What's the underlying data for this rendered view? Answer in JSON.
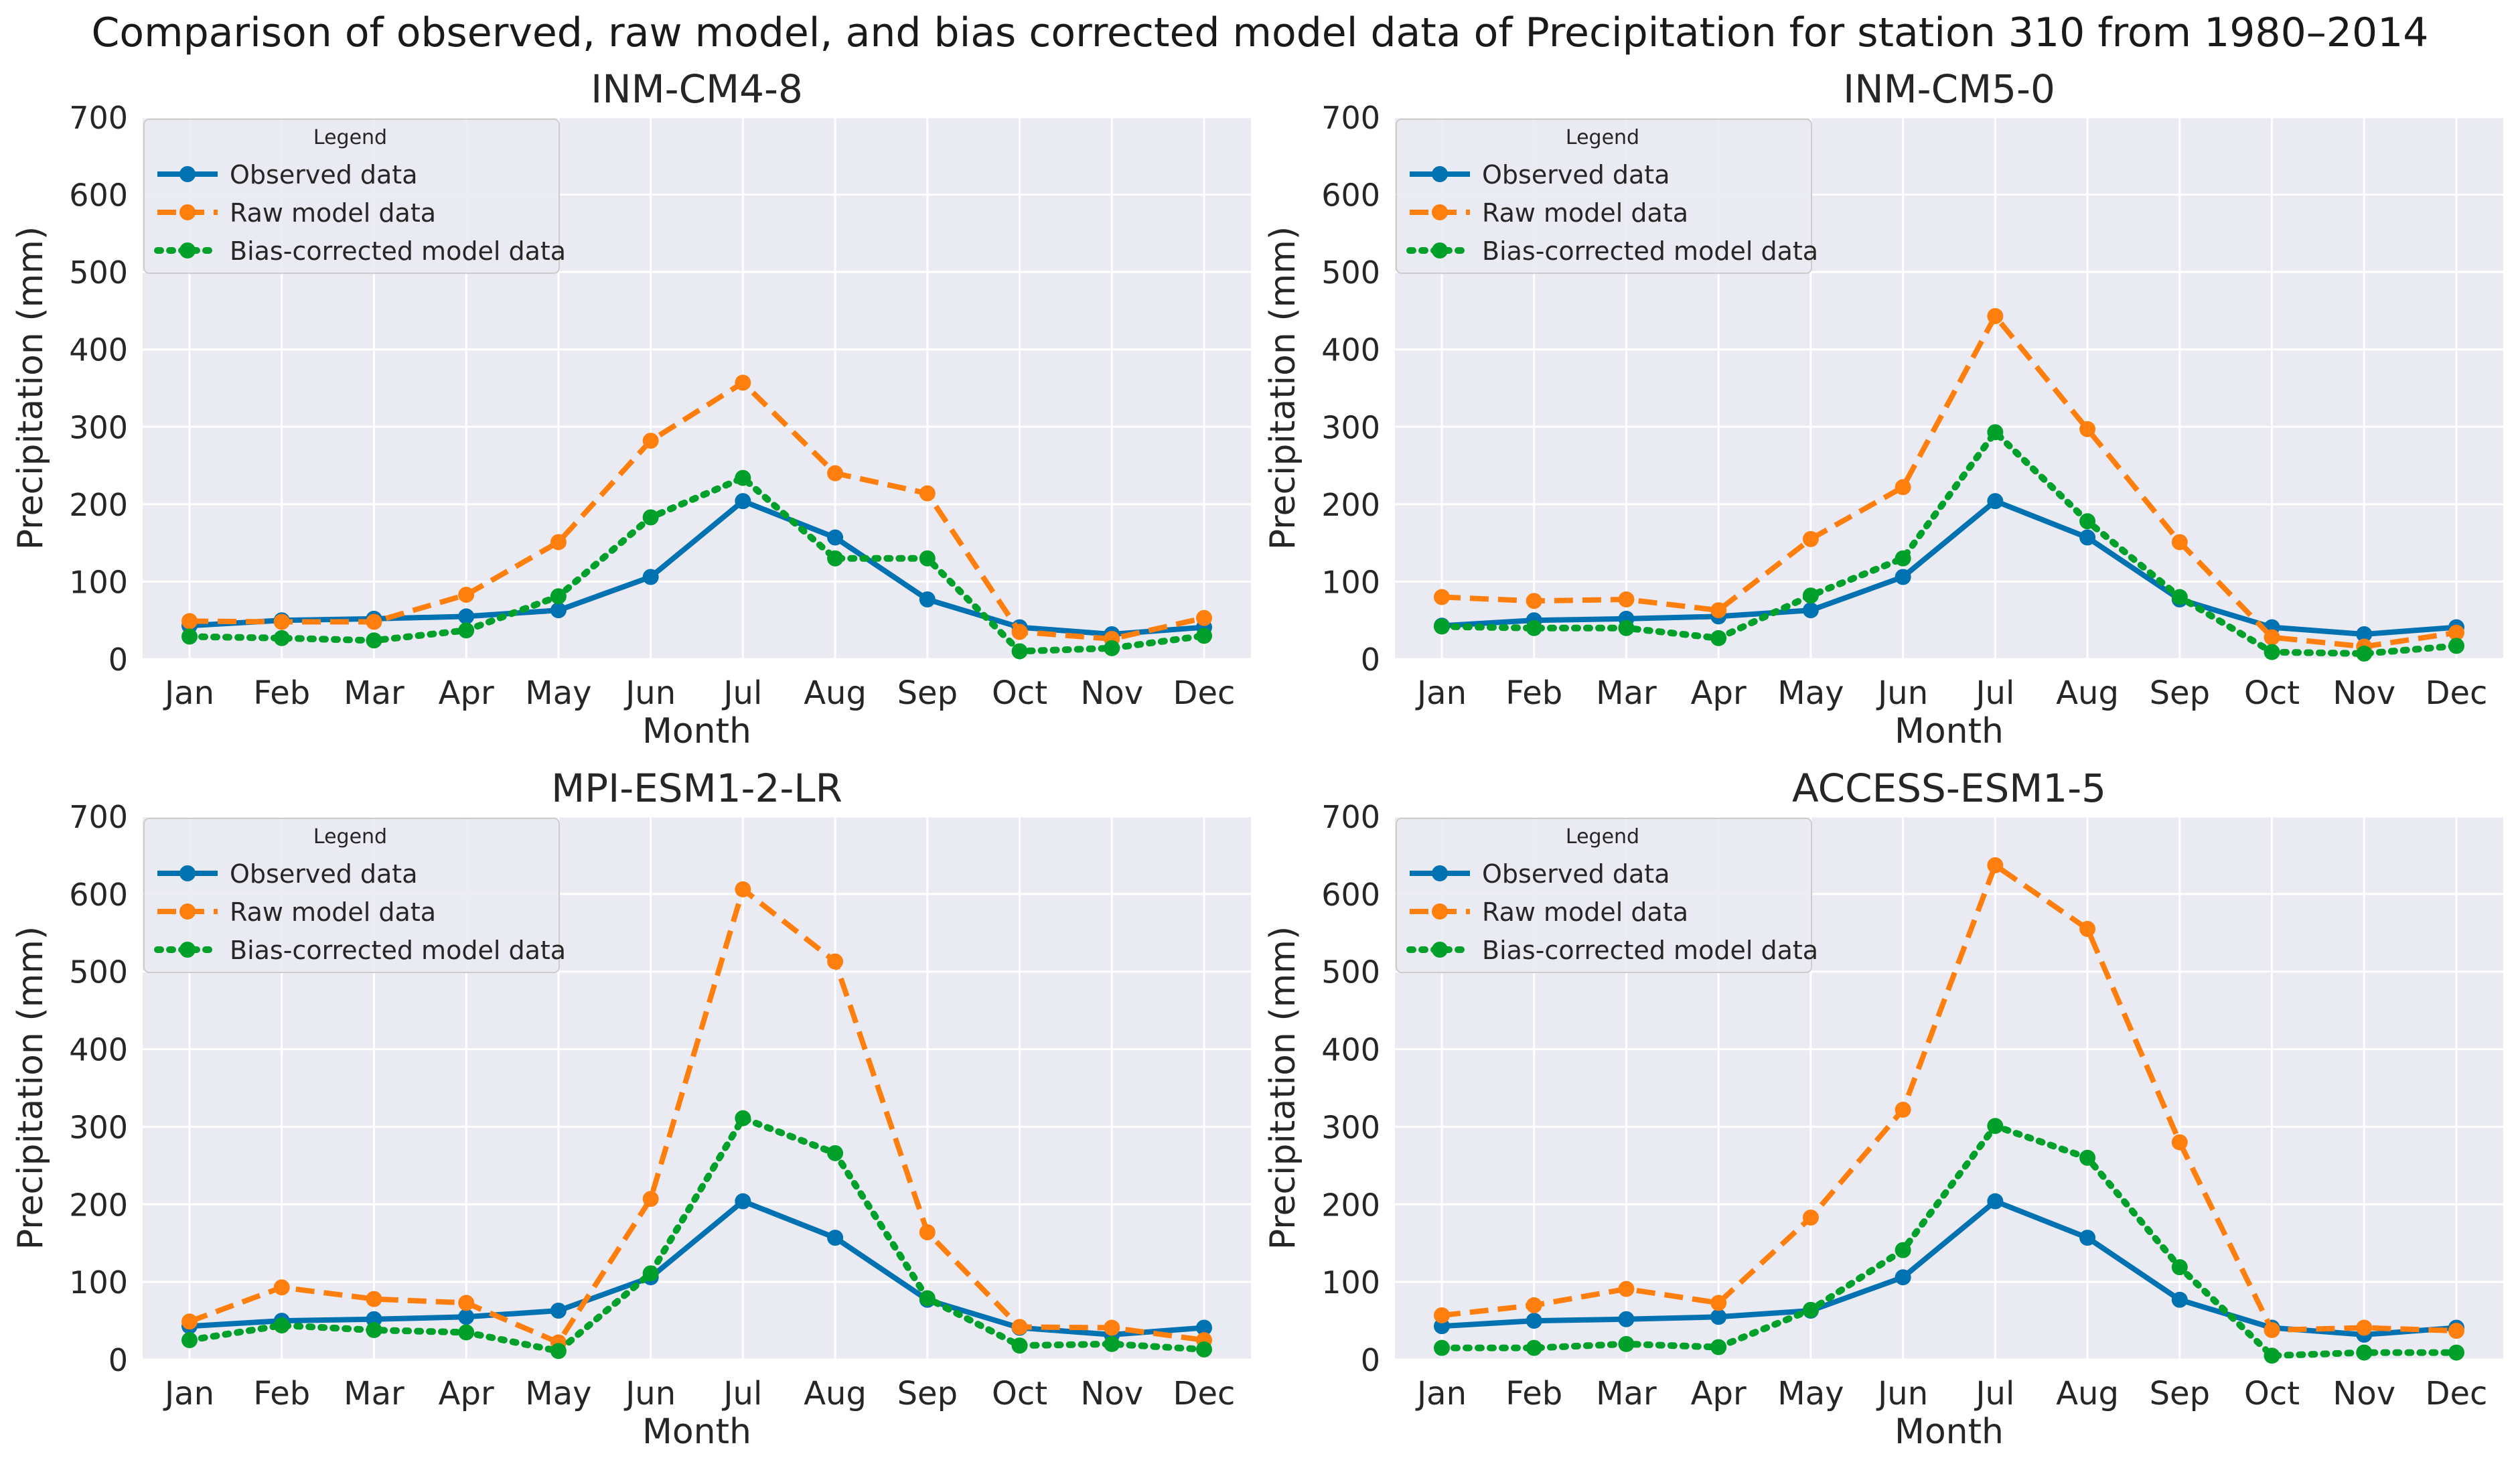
{
  "suptitle": "Comparison of observed, raw model, and bias corrected model data of Precipitation for station 310 from 1980–2014",
  "colors": {
    "background": "#eaeaf2",
    "grid": "#ffffff",
    "observed": "#0072b2",
    "raw": "#ff7f0e",
    "bias_corrected": "#00a02a",
    "text": "#262626"
  },
  "chart_data": [
    {
      "type": "line",
      "title": "INM-CM4-8",
      "xlabel": "Month",
      "ylabel": "Precipitation (mm)",
      "ylim": [
        0,
        700
      ],
      "yticks": [
        0,
        100,
        200,
        300,
        400,
        500,
        600,
        700
      ],
      "grid": true,
      "categories": [
        "Jan",
        "Feb",
        "Mar",
        "Apr",
        "May",
        "Jun",
        "Jul",
        "Aug",
        "Sep",
        "Oct",
        "Nov",
        "Dec"
      ],
      "legend": {
        "title": "Legend",
        "position": "top-left"
      },
      "series": [
        {
          "name": "Observed data",
          "style": "solid",
          "color_key": "observed",
          "values": [
            43,
            50,
            52,
            55,
            63,
            106,
            204,
            157,
            77,
            41,
            32,
            41
          ]
        },
        {
          "name": "Raw model data",
          "style": "dashed",
          "color_key": "raw",
          "values": [
            49,
            48,
            48,
            83,
            151,
            282,
            357,
            240,
            214,
            35,
            26,
            53
          ]
        },
        {
          "name": "Bias-corrected model data",
          "style": "dotted",
          "color_key": "bias_corrected",
          "values": [
            29,
            27,
            24,
            37,
            81,
            183,
            234,
            130,
            130,
            10,
            14,
            30
          ]
        }
      ]
    },
    {
      "type": "line",
      "title": "INM-CM5-0",
      "xlabel": "Month",
      "ylabel": "Precipitation (mm)",
      "ylim": [
        0,
        700
      ],
      "yticks": [
        0,
        100,
        200,
        300,
        400,
        500,
        600,
        700
      ],
      "grid": true,
      "categories": [
        "Jan",
        "Feb",
        "Mar",
        "Apr",
        "May",
        "Jun",
        "Jul",
        "Aug",
        "Sep",
        "Oct",
        "Nov",
        "Dec"
      ],
      "legend": {
        "title": "Legend",
        "position": "top-left"
      },
      "series": [
        {
          "name": "Observed data",
          "style": "solid",
          "color_key": "observed",
          "values": [
            43,
            50,
            52,
            55,
            63,
            106,
            204,
            157,
            77,
            41,
            32,
            41
          ]
        },
        {
          "name": "Raw model data",
          "style": "dashed",
          "color_key": "raw",
          "values": [
            80,
            75,
            77,
            63,
            155,
            222,
            443,
            297,
            151,
            28,
            16,
            34
          ]
        },
        {
          "name": "Bias-corrected model data",
          "style": "dotted",
          "color_key": "bias_corrected",
          "values": [
            42,
            40,
            40,
            27,
            82,
            130,
            293,
            178,
            80,
            9,
            7,
            17
          ]
        }
      ]
    },
    {
      "type": "line",
      "title": "MPI-ESM1-2-LR",
      "xlabel": "Month",
      "ylabel": "Precipitation (mm)",
      "ylim": [
        0,
        700
      ],
      "yticks": [
        0,
        100,
        200,
        300,
        400,
        500,
        600,
        700
      ],
      "grid": true,
      "categories": [
        "Jan",
        "Feb",
        "Mar",
        "Apr",
        "May",
        "Jun",
        "Jul",
        "Aug",
        "Sep",
        "Oct",
        "Nov",
        "Dec"
      ],
      "legend": {
        "title": "Legend",
        "position": "top-left"
      },
      "series": [
        {
          "name": "Observed data",
          "style": "solid",
          "color_key": "observed",
          "values": [
            43,
            50,
            52,
            55,
            63,
            106,
            204,
            157,
            77,
            41,
            32,
            41
          ]
        },
        {
          "name": "Raw model data",
          "style": "dashed",
          "color_key": "raw",
          "values": [
            49,
            93,
            78,
            73,
            22,
            207,
            606,
            513,
            164,
            42,
            41,
            25
          ]
        },
        {
          "name": "Bias-corrected model data",
          "style": "dotted",
          "color_key": "bias_corrected",
          "values": [
            25,
            44,
            38,
            35,
            11,
            111,
            311,
            266,
            79,
            18,
            20,
            13
          ]
        }
      ]
    },
    {
      "type": "line",
      "title": "ACCESS-ESM1-5",
      "xlabel": "Month",
      "ylabel": "Precipitation (mm)",
      "ylim": [
        0,
        700
      ],
      "yticks": [
        0,
        100,
        200,
        300,
        400,
        500,
        600,
        700
      ],
      "grid": true,
      "categories": [
        "Jan",
        "Feb",
        "Mar",
        "Apr",
        "May",
        "Jun",
        "Jul",
        "Aug",
        "Sep",
        "Oct",
        "Nov",
        "Dec"
      ],
      "legend": {
        "title": "Legend",
        "position": "top-left"
      },
      "series": [
        {
          "name": "Observed data",
          "style": "solid",
          "color_key": "observed",
          "values": [
            43,
            50,
            52,
            55,
            63,
            106,
            204,
            157,
            77,
            41,
            32,
            41
          ]
        },
        {
          "name": "Raw model data",
          "style": "dashed",
          "color_key": "raw",
          "values": [
            57,
            70,
            91,
            73,
            183,
            322,
            637,
            555,
            280,
            38,
            41,
            37
          ]
        },
        {
          "name": "Bias-corrected model data",
          "style": "dotted",
          "color_key": "bias_corrected",
          "values": [
            15,
            15,
            20,
            16,
            64,
            141,
            301,
            260,
            119,
            5,
            9,
            9
          ]
        }
      ]
    }
  ]
}
